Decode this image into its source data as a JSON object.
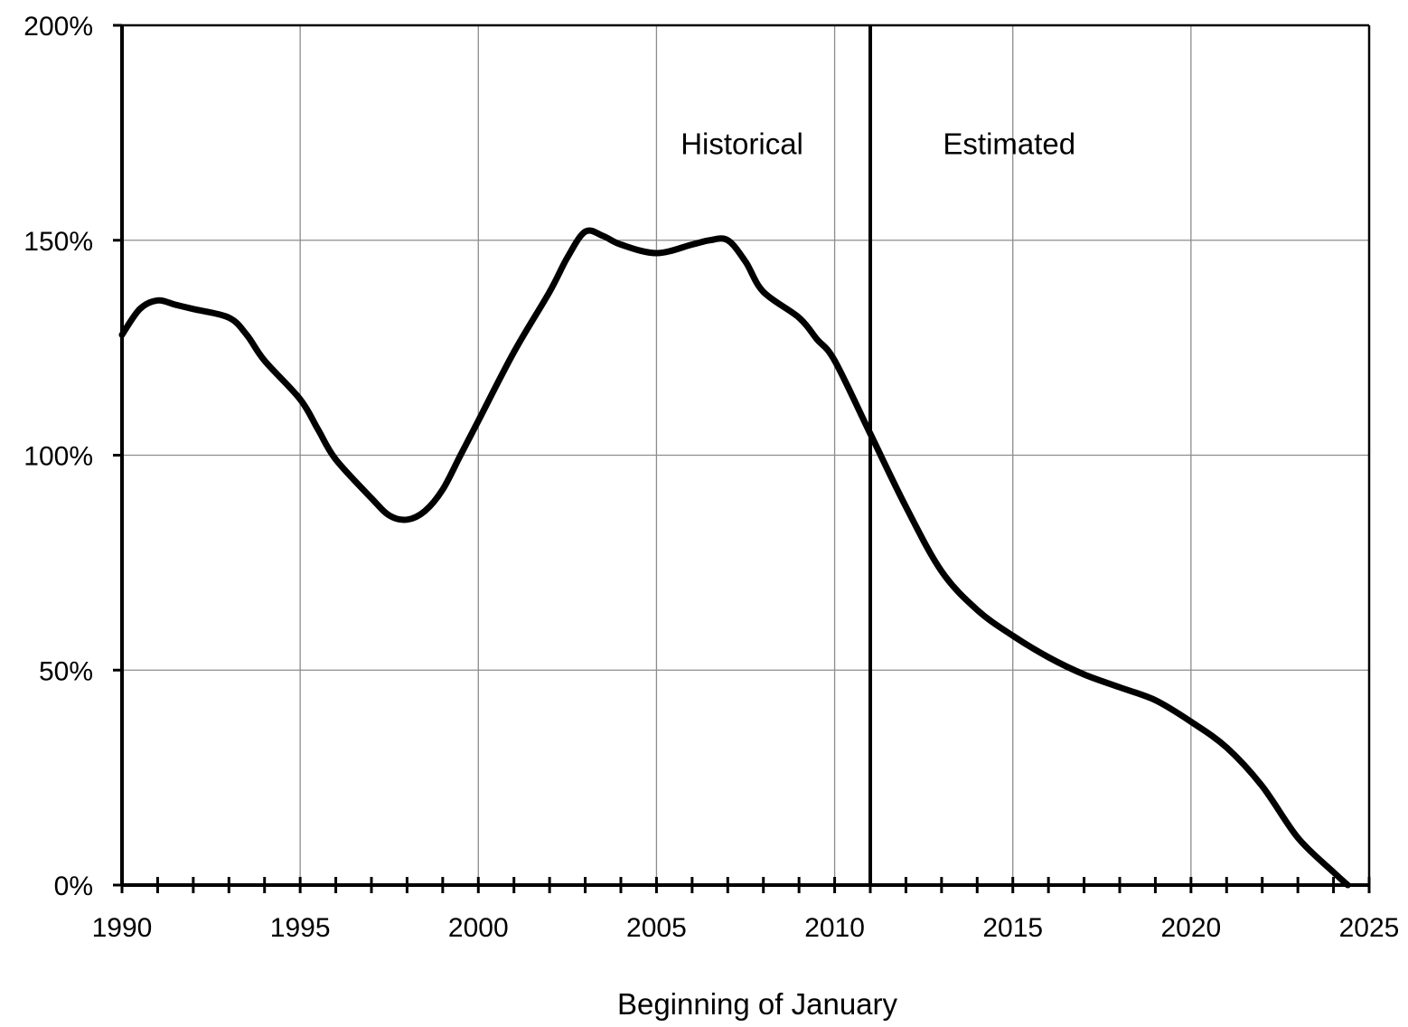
{
  "chart_data": {
    "type": "line",
    "title": "",
    "xlabel": "Beginning of January",
    "ylabel": "",
    "xlim": [
      1990,
      2025
    ],
    "ylim": [
      0,
      200
    ],
    "x_ticks": [
      1990,
      1995,
      2000,
      2005,
      2010,
      2015,
      2020,
      2025
    ],
    "x_tick_labels": [
      "1990",
      "1995",
      "2000",
      "2005",
      "2010",
      "2015",
      "2020",
      "2025"
    ],
    "y_ticks": [
      0,
      50,
      100,
      150,
      200
    ],
    "y_tick_labels": [
      "0%",
      "50%",
      "100%",
      "150%",
      "200%"
    ],
    "x_minor_tick_step": 1,
    "grid": true,
    "divider_year": 2011,
    "annotations": [
      {
        "text": "Historical",
        "x": 2007.4,
        "y": 170
      },
      {
        "text": "Estimated",
        "x": 2014.9,
        "y": 170
      }
    ],
    "series": [
      {
        "color": "#000000",
        "x": [
          1990,
          1990.5,
          1991,
          1991.5,
          1992,
          1993,
          1993.5,
          1994,
          1995,
          1995.5,
          1996,
          1997,
          1997.5,
          1998,
          1998.5,
          1999,
          1999.5,
          2000,
          2001,
          2002,
          2002.5,
          2003,
          2003.5,
          2004,
          2005,
          2006,
          2006.5,
          2007,
          2007.5,
          2008,
          2009,
          2009.5,
          2010,
          2011,
          2012,
          2013,
          2014,
          2015,
          2016,
          2017,
          2018,
          2019,
          2020,
          2021,
          2022,
          2023,
          2024,
          2024.4
        ],
        "y": [
          128,
          134,
          136,
          135,
          134,
          132,
          128,
          122,
          113,
          106,
          99,
          90,
          86,
          85,
          87,
          92,
          100,
          108,
          124,
          138,
          146,
          152,
          151,
          149,
          147,
          149,
          150,
          150,
          145,
          138,
          132,
          127,
          122,
          105,
          88,
          73,
          64,
          58,
          53,
          49,
          46,
          43,
          38,
          32,
          23,
          11,
          3,
          0
        ]
      }
    ]
  }
}
